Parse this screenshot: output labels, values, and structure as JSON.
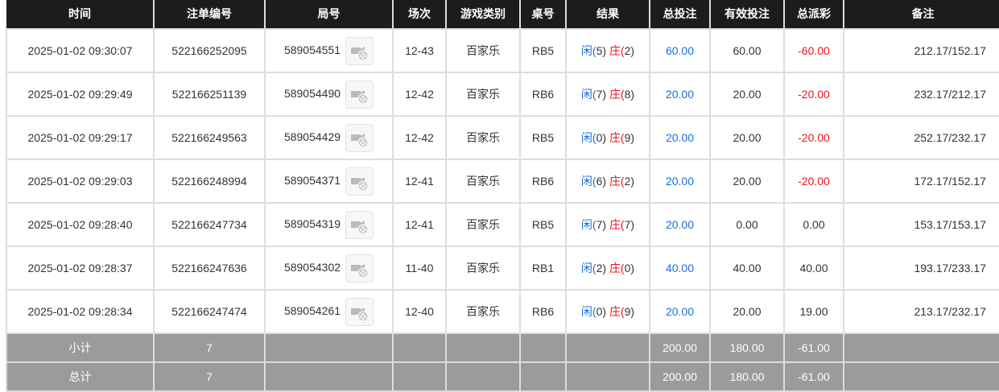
{
  "headers": [
    "时间",
    "注单编号",
    "局号",
    "场次",
    "游戏类别",
    "桌号",
    "结果",
    "总投注",
    "有效投注",
    "总派彩",
    "备注"
  ],
  "rows": [
    {
      "time": "2025-01-02 09:30:07",
      "order": "522166252095",
      "round": "589054551",
      "session": "12-43",
      "game": "百家乐",
      "table": "RB5",
      "player": "闲(5)",
      "banker": "庄(2)",
      "bet": "60.00",
      "valid": "60.00",
      "payout": "-60.00",
      "remark": "212.17/152.17"
    },
    {
      "time": "2025-01-02 09:29:49",
      "order": "522166251139",
      "round": "589054490",
      "session": "12-42",
      "game": "百家乐",
      "table": "RB6",
      "player": "闲(7)",
      "banker": "庄(8)",
      "bet": "20.00",
      "valid": "20.00",
      "payout": "-20.00",
      "remark": "232.17/212.17"
    },
    {
      "time": "2025-01-02 09:29:17",
      "order": "522166249563",
      "round": "589054429",
      "session": "12-42",
      "game": "百家乐",
      "table": "RB5",
      "player": "闲(0)",
      "banker": "庄(9)",
      "bet": "20.00",
      "valid": "20.00",
      "payout": "-20.00",
      "remark": "252.17/232.17"
    },
    {
      "time": "2025-01-02 09:29:03",
      "order": "522166248994",
      "round": "589054371",
      "session": "12-41",
      "game": "百家乐",
      "table": "RB6",
      "player": "闲(6)",
      "banker": "庄(2)",
      "bet": "20.00",
      "valid": "20.00",
      "payout": "-20.00",
      "remark": "172.17/152.17"
    },
    {
      "time": "2025-01-02 09:28:40",
      "order": "522166247734",
      "round": "589054319",
      "session": "12-41",
      "game": "百家乐",
      "table": "RB5",
      "player": "闲(7)",
      "banker": "庄(7)",
      "bet": "20.00",
      "valid": "0.00",
      "payout": "0.00",
      "remark": "153.17/153.17"
    },
    {
      "time": "2025-01-02 09:28:37",
      "order": "522166247636",
      "round": "589054302",
      "session": "11-40",
      "game": "百家乐",
      "table": "RB1",
      "player": "闲(2)",
      "banker": "庄(0)",
      "bet": "40.00",
      "valid": "40.00",
      "payout": "40.00",
      "remark": "193.17/233.17"
    },
    {
      "time": "2025-01-02 09:28:34",
      "order": "522166247474",
      "round": "589054261",
      "session": "12-40",
      "game": "百家乐",
      "table": "RB6",
      "player": "闲(0)",
      "banker": "庄(9)",
      "bet": "20.00",
      "valid": "20.00",
      "payout": "19.00",
      "remark": "213.17/232.17"
    }
  ],
  "subtotal": {
    "label": "小计",
    "count": "7",
    "bet": "200.00",
    "valid": "180.00",
    "payout": "-61.00"
  },
  "total": {
    "label": "总计",
    "count": "7",
    "bet": "200.00",
    "valid": "180.00",
    "payout": "-61.00"
  },
  "colors": {
    "header_bg": "#1c1c1c",
    "player": "#1a6fd6",
    "banker_negative": "#e8141e",
    "summary_bg": "#9b9b9b"
  },
  "icons": {
    "replay": "video-replay-icon"
  }
}
